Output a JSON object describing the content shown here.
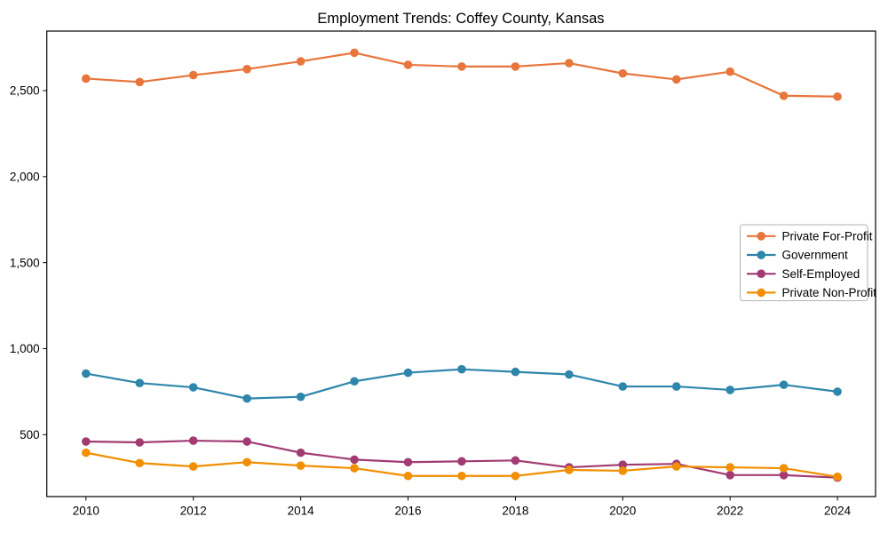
{
  "title": "Employment Trends: Coffey County, Kansas",
  "chart_data": {
    "type": "line",
    "title": "Employment Trends: Coffey County, Kansas",
    "xlabel": "",
    "ylabel": "",
    "x": [
      2010,
      2011,
      2012,
      2013,
      2014,
      2015,
      2016,
      2017,
      2018,
      2019,
      2020,
      2021,
      2022,
      2023,
      2024
    ],
    "series": [
      {
        "name": "Private For-Profit",
        "color": "#E8763C",
        "values": [
          2570,
          2550,
          2590,
          2625,
          2670,
          2720,
          2650,
          2640,
          2640,
          2660,
          2600,
          2565,
          2610,
          2470,
          2465
        ]
      },
      {
        "name": "Government",
        "color": "#2E86AB",
        "values": [
          855,
          800,
          775,
          710,
          720,
          810,
          860,
          880,
          865,
          850,
          780,
          780,
          760,
          790,
          750
        ]
      },
      {
        "name": "Self-Employed",
        "color": "#A23B72",
        "values": [
          460,
          455,
          465,
          460,
          395,
          355,
          340,
          345,
          350,
          310,
          325,
          330,
          265,
          265,
          250
        ]
      },
      {
        "name": "Private Non-Profit",
        "color": "#F18F01",
        "values": [
          395,
          335,
          315,
          340,
          320,
          305,
          260,
          260,
          260,
          295,
          290,
          315,
          310,
          305,
          255
        ]
      }
    ],
    "x_ticks": [
      2010,
      2012,
      2014,
      2016,
      2018,
      2020,
      2022,
      2024
    ],
    "y_ticks": [
      500,
      1000,
      1500,
      2000,
      2500
    ],
    "y_tick_labels": [
      "500",
      "1,000",
      "1,500",
      "2,000",
      "2,500"
    ],
    "xlim": [
      2009.27,
      2024.71
    ],
    "ylim": [
      140,
      2846
    ],
    "grid": false,
    "legend_position": "center right",
    "marker": "circle"
  }
}
